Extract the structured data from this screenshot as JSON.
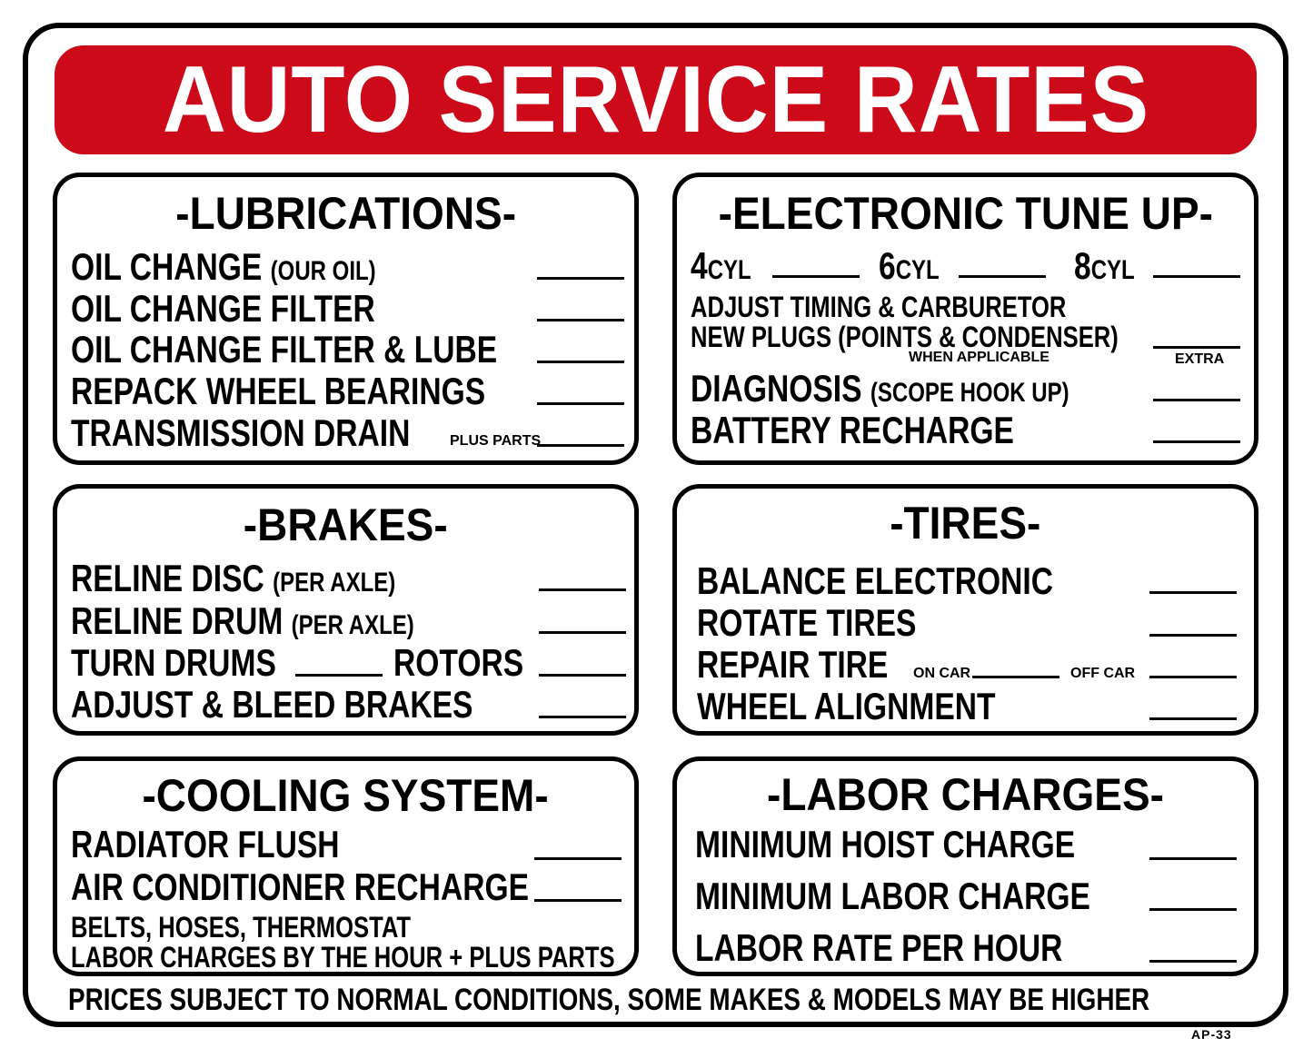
{
  "title": "AUTO SERVICE RATES",
  "colors": {
    "banner": "#cc0a1a",
    "ink": "#000000"
  },
  "lubrications": {
    "heading": "-LUBRICATIONS-",
    "items": [
      {
        "label": "OIL CHANGE",
        "note": "(OUR OIL)"
      },
      {
        "label": "OIL CHANGE FILTER"
      },
      {
        "label": "OIL CHANGE FILTER & LUBE"
      },
      {
        "label": "REPACK WHEEL BEARINGS"
      },
      {
        "label": "TRANSMISSION DRAIN",
        "note": "PLUS PARTS"
      }
    ]
  },
  "tuneup": {
    "heading": "-ELECTRONIC TUNE UP-",
    "cyl": [
      {
        "n": "4",
        "u": "CYL"
      },
      {
        "n": "6",
        "u": "CYL"
      },
      {
        "n": "8",
        "u": "CYL"
      }
    ],
    "adjust": "ADJUST TIMING & CARBURETOR",
    "plugs": "NEW PLUGS (POINTS & CONDENSER)",
    "when": "WHEN APPLICABLE",
    "extra": "EXTRA",
    "diagnosis": "DIAGNOSIS",
    "diagnosis_note": "(SCOPE HOOK UP)",
    "battery": "BATTERY RECHARGE"
  },
  "brakes": {
    "heading": "-BRAKES-",
    "items": [
      {
        "label": "RELINE DISC",
        "note": "(PER AXLE)"
      },
      {
        "label": "RELINE DRUM",
        "note": "(PER AXLE)"
      },
      {
        "label": "TURN DRUMS",
        "label2": "ROTORS"
      },
      {
        "label": "ADJUST & BLEED BRAKES"
      }
    ]
  },
  "tires": {
    "heading": "-TIRES-",
    "items": [
      {
        "label": "BALANCE ELECTRONIC"
      },
      {
        "label": "ROTATE TIRES"
      },
      {
        "label": "REPAIR TIRE",
        "on": "ON CAR",
        "off": "OFF CAR"
      },
      {
        "label": "WHEEL ALIGNMENT"
      }
    ]
  },
  "cooling": {
    "heading": "-COOLING SYSTEM-",
    "items": [
      {
        "label": "RADIATOR FLUSH"
      },
      {
        "label": "AIR CONDITIONER RECHARGE"
      }
    ],
    "note1": "BELTS, HOSES, THERMOSTAT",
    "note2": "LABOR CHARGES BY THE HOUR + PLUS PARTS"
  },
  "labor": {
    "heading": "-LABOR CHARGES-",
    "items": [
      {
        "label": "MINIMUM HOIST CHARGE"
      },
      {
        "label": "MINIMUM LABOR CHARGE"
      },
      {
        "label": "LABOR RATE PER HOUR"
      }
    ]
  },
  "footer": "PRICES SUBJECT TO NORMAL CONDITIONS, SOME MAKES & MODELS MAY BE HIGHER",
  "code": "AP-33"
}
